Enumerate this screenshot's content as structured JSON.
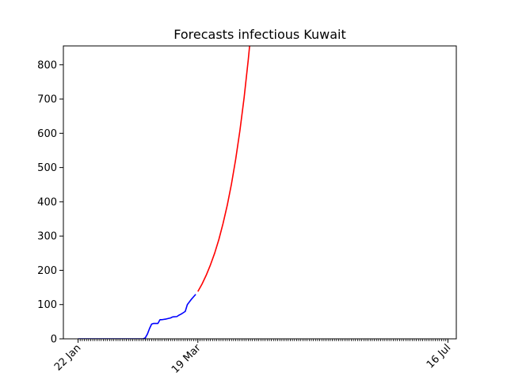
{
  "chart_data": {
    "type": "line",
    "title": "Forecasts infectious Kuwait",
    "xlabel": "",
    "ylabel": "",
    "x_axis": {
      "type": "date",
      "start": "2020-01-22",
      "end": "2020-07-16",
      "tick_labels": [
        {
          "date": "2020-01-22",
          "label": "22 Jan"
        },
        {
          "date": "2020-03-19",
          "label": "19 Mar"
        },
        {
          "date": "2020-07-16",
          "label": "16 Jul"
        }
      ],
      "minor_ticks": "daily",
      "xlim": [
        "2020-01-15",
        "2020-07-20"
      ]
    },
    "y_axis": {
      "ylim": [
        0,
        855
      ],
      "ticks": [
        0,
        100,
        200,
        300,
        400,
        500,
        600,
        700,
        800
      ]
    },
    "grid": false,
    "legend": "none",
    "series": [
      {
        "color": "#0000ff",
        "points": [
          [
            "2020-01-22",
            0
          ],
          [
            "2020-02-22",
            0
          ],
          [
            "2020-02-23",
            3
          ],
          [
            "2020-02-24",
            14
          ],
          [
            "2020-02-25",
            30
          ],
          [
            "2020-02-26",
            43
          ],
          [
            "2020-02-27",
            45
          ],
          [
            "2020-02-29",
            45
          ],
          [
            "2020-03-01",
            56
          ],
          [
            "2020-03-02",
            56
          ],
          [
            "2020-03-04",
            58
          ],
          [
            "2020-03-06",
            61
          ],
          [
            "2020-03-07",
            64
          ],
          [
            "2020-03-09",
            65
          ],
          [
            "2020-03-10",
            69
          ],
          [
            "2020-03-11",
            72
          ],
          [
            "2020-03-12",
            76
          ],
          [
            "2020-03-13",
            80
          ],
          [
            "2020-03-14",
            100
          ],
          [
            "2020-03-15",
            108
          ],
          [
            "2020-03-16",
            116
          ],
          [
            "2020-03-17",
            123
          ],
          [
            "2020-03-18",
            130
          ]
        ]
      },
      {
        "color": "#ff0000",
        "points": [
          [
            "2020-03-19",
            138
          ],
          [
            "2020-03-21",
            160
          ],
          [
            "2020-03-23",
            186
          ],
          [
            "2020-03-25",
            216
          ],
          [
            "2020-03-27",
            250
          ],
          [
            "2020-03-29",
            290
          ],
          [
            "2020-03-31",
            337
          ],
          [
            "2020-04-02",
            390
          ],
          [
            "2020-04-04",
            452
          ],
          [
            "2020-04-06",
            524
          ],
          [
            "2020-04-08",
            607
          ],
          [
            "2020-04-10",
            703
          ],
          [
            "2020-04-12",
            815
          ],
          [
            "2020-04-13",
            878
          ]
        ]
      }
    ]
  }
}
